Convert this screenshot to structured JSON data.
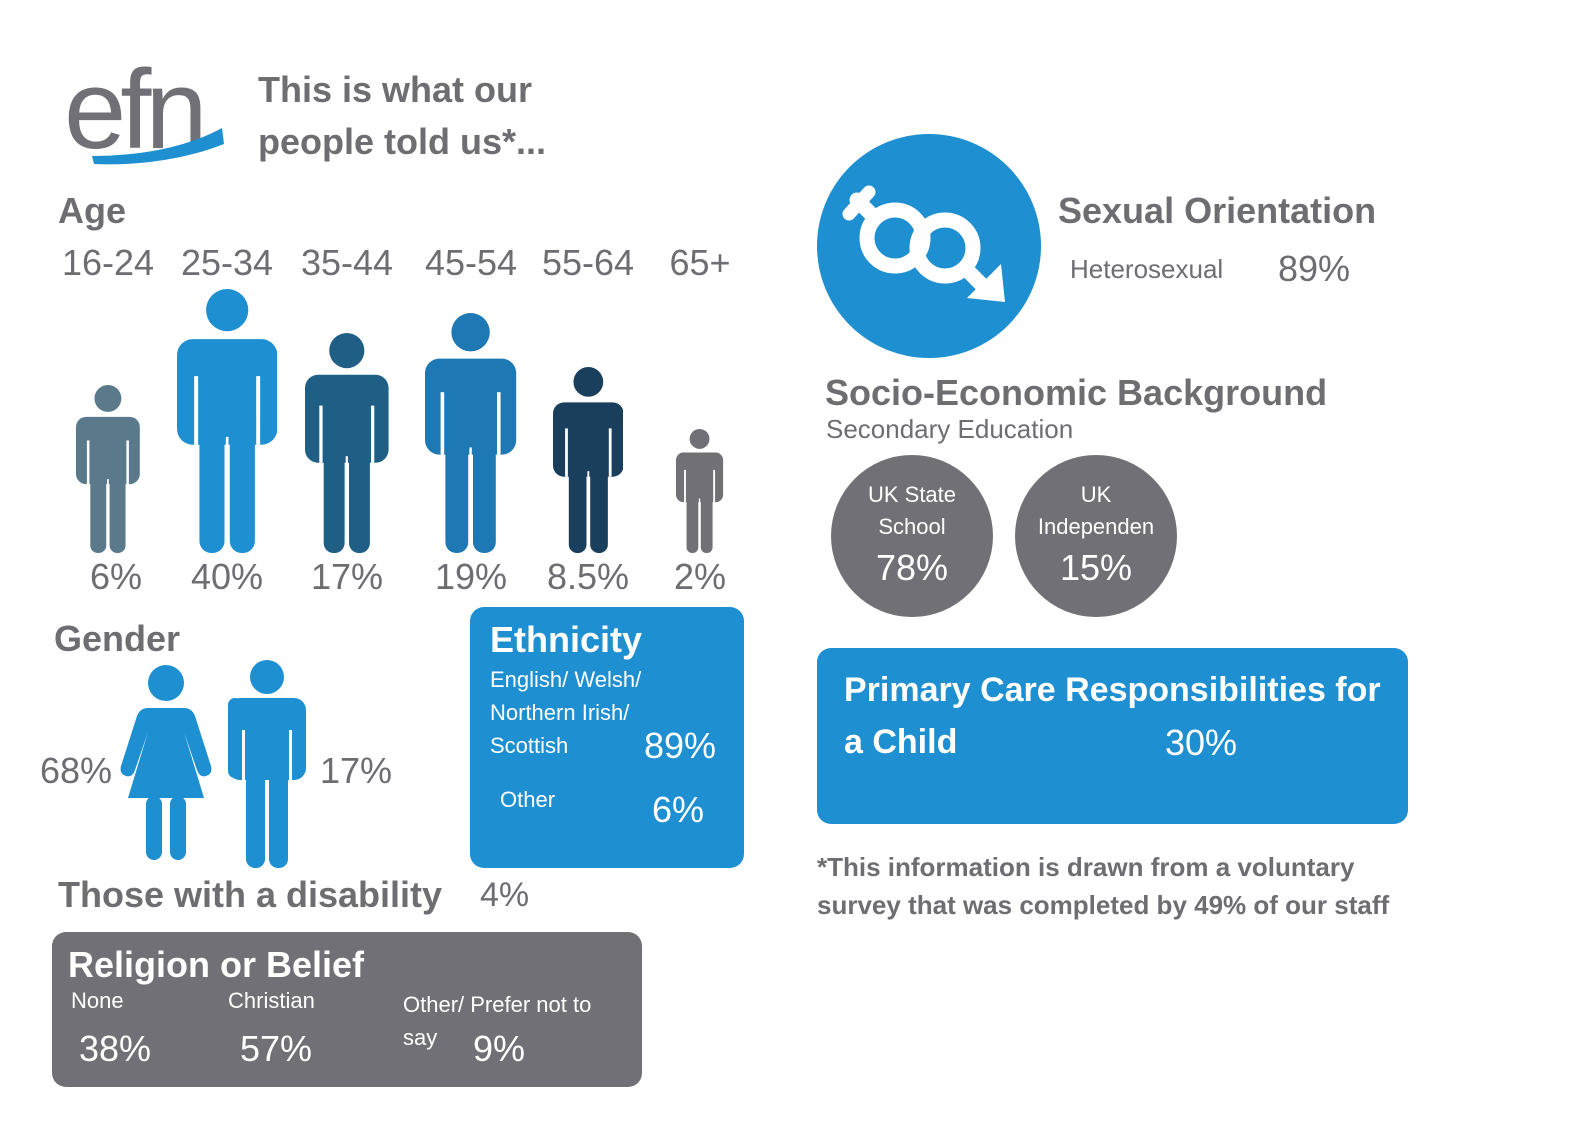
{
  "header": {
    "logo_text": "efn",
    "headline_line1": "This is what our",
    "headline_line2": "people told us*..."
  },
  "age": {
    "title": "Age",
    "groups": [
      {
        "range": "16-24",
        "percent": "6%",
        "value": 6,
        "color": "#5a7a8c"
      },
      {
        "range": "25-34",
        "percent": "40%",
        "value": 40,
        "color": "#1e8fd1"
      },
      {
        "range": "35-44",
        "percent": "17%",
        "value": 17,
        "color": "#1f5f86"
      },
      {
        "range": "45-54",
        "percent": "19%",
        "value": 19,
        "color": "#1d78b3"
      },
      {
        "range": "55-64",
        "percent": "8.5%",
        "value": 8.5,
        "color": "#1a3f5c"
      },
      {
        "range": "65+",
        "percent": "2%",
        "value": 2,
        "color": "#717076"
      }
    ]
  },
  "gender": {
    "title": "Gender",
    "female_percent": "68%",
    "male_percent": "17%",
    "color": "#1e8fd1"
  },
  "disability": {
    "label": "Those with a disability",
    "percent": "4%"
  },
  "ethnicity": {
    "title": "Ethnicity",
    "group1_line1": "English/ Welsh/",
    "group1_line2": "Northern Irish/",
    "group1_line3": "Scottish",
    "group1_percent": "89%",
    "other_label": "Other",
    "other_percent": "6%"
  },
  "religion": {
    "title": "Religion or Belief",
    "none_label": "None",
    "none_percent": "38%",
    "christian_label": "Christian",
    "christian_percent": "57%",
    "other_label": "Other/ Prefer not to say",
    "other_percent": "9%"
  },
  "sexual_orientation": {
    "title": "Sexual Orientation",
    "label": "Heterosexual",
    "percent": "89%",
    "icon": "gender-symbols-icon"
  },
  "socio_economic": {
    "title": "Socio-Economic Background",
    "subtitle": "Secondary Education",
    "state_line1": "UK State",
    "state_line2": "School",
    "state_percent": "78%",
    "independent_line1": "UK",
    "independent_line2": "Independen",
    "independent_percent": "15%"
  },
  "primary_care": {
    "title": "Primary Care Responsibilities for a Child",
    "percent": "30%"
  },
  "footnote": "*This information is drawn from a voluntary survey that was completed by 49% of our staff",
  "colors": {
    "blue": "#1e8fd1",
    "grey": "#717076",
    "text_grey": "#6d6d72"
  }
}
